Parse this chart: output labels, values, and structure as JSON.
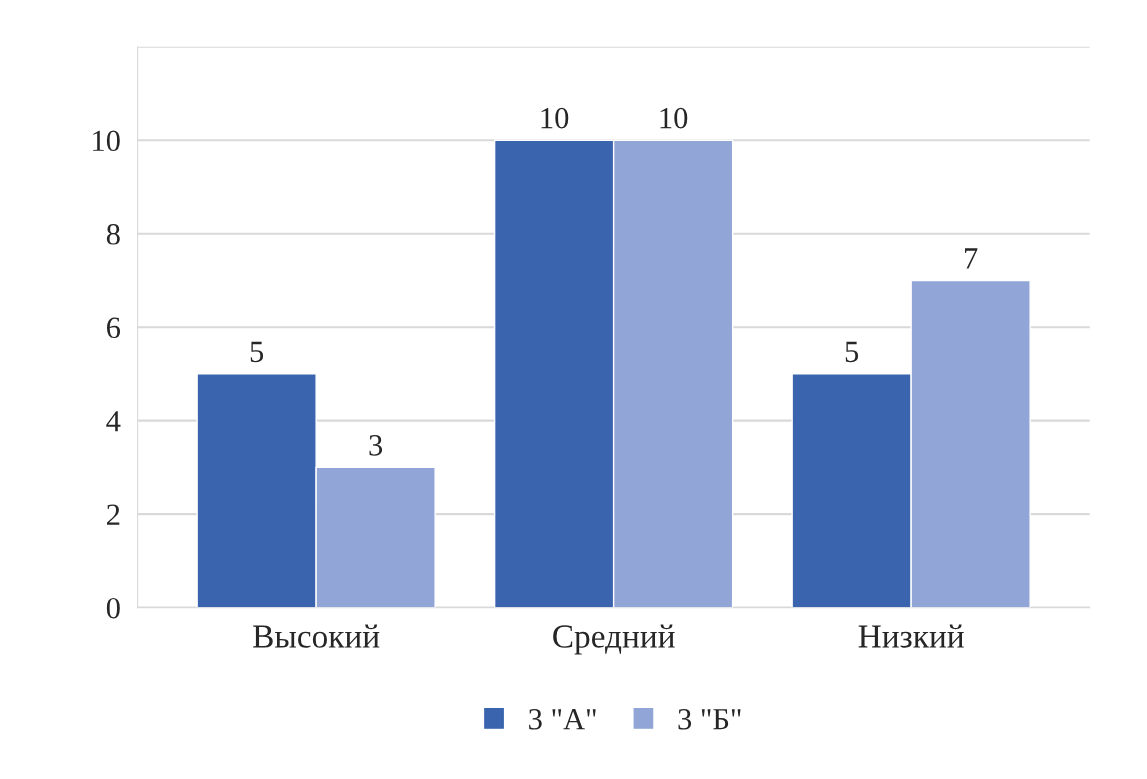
{
  "chart_data": {
    "type": "bar",
    "categories": [
      "Высокий",
      "Средний",
      "Низкий"
    ],
    "series": [
      {
        "name": "3 \"А\"",
        "color": "#3a64ae",
        "values": [
          5,
          10,
          5
        ]
      },
      {
        "name": "3 \"Б\"",
        "color": "#91a6d6",
        "values": [
          3,
          10,
          7
        ]
      }
    ],
    "ylim": [
      0,
      12
    ],
    "yticks": [
      0,
      2,
      4,
      6,
      8,
      10,
      {
        "value": 12,
        "label": null
      }
    ],
    "grid": "y",
    "legend": "bottom",
    "data_labels": true
  }
}
